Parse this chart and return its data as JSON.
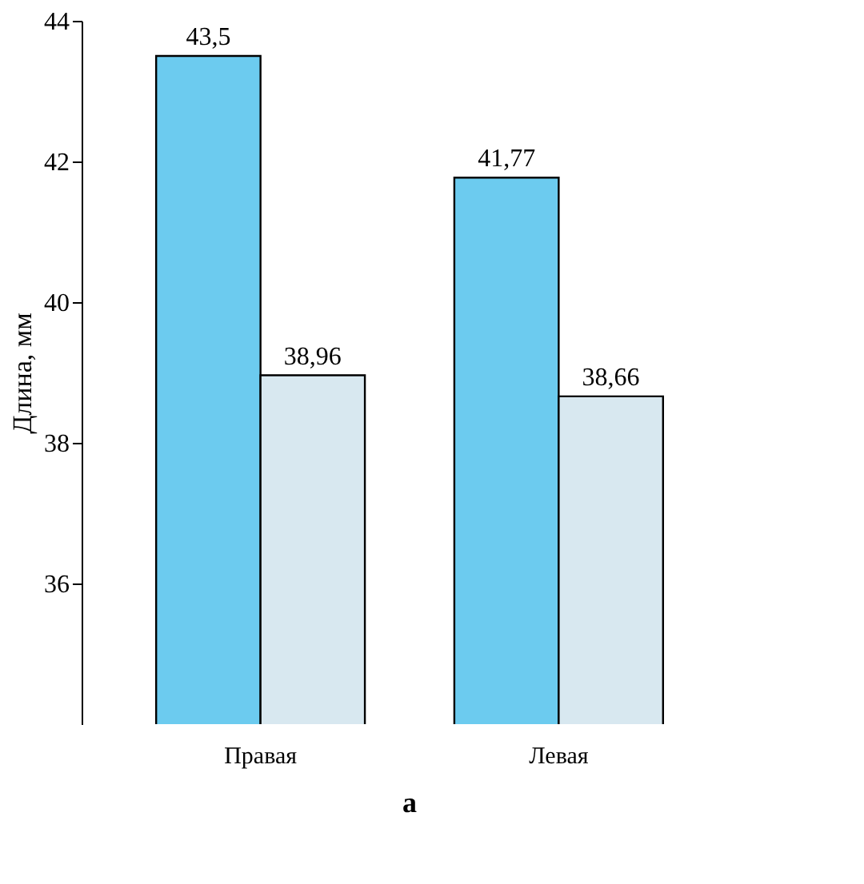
{
  "chart_data": {
    "type": "bar",
    "ylabel": "Длина, мм",
    "categories": [
      "Правая",
      "Левая"
    ],
    "series": [
      {
        "color": "#6ccbef",
        "values": [
          43.5,
          41.77
        ],
        "value_labels": [
          "43,5",
          "41,77"
        ]
      },
      {
        "color": "#d8e8f0",
        "values": [
          38.96,
          38.66
        ],
        "value_labels": [
          "38,96",
          "38,66"
        ]
      }
    ],
    "ylim": [
      34,
      44
    ],
    "yticks": [
      36,
      38,
      40,
      42,
      44
    ],
    "grid": false,
    "annotations": [
      "а"
    ]
  }
}
